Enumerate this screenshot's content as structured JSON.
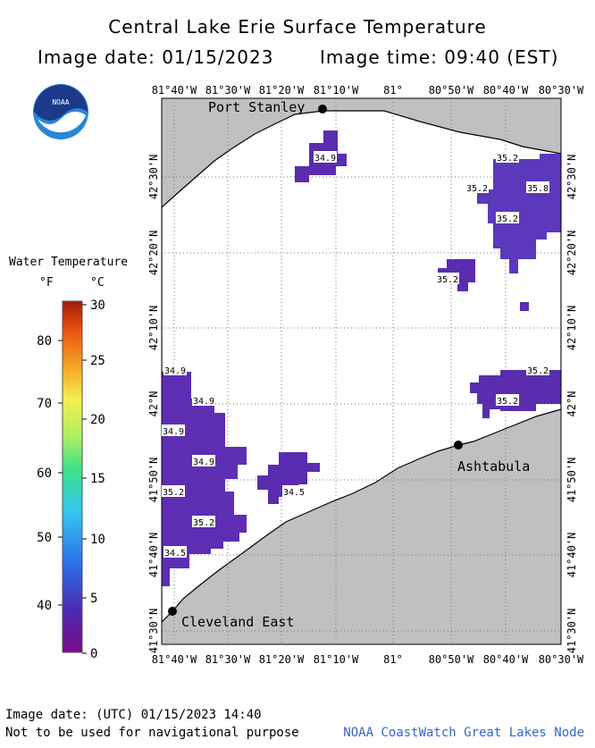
{
  "header": {
    "title": "Central Lake Erie Surface Temperature",
    "image_date": "Image date: 01/15/2023",
    "image_time": "Image time: 09:40 (EST)"
  },
  "logo": {
    "icon": "noaa-logo-icon",
    "text": "NOAA"
  },
  "legend": {
    "title": "Water Temperature",
    "unit_f": "°F",
    "unit_c": "°C",
    "f_ticks": [
      "80",
      "70",
      "60",
      "50",
      "40"
    ],
    "c_ticks": [
      "30",
      "25",
      "20",
      "15",
      "10",
      "5",
      "0"
    ]
  },
  "map": {
    "lon_labels": [
      "81°40'W",
      "81°30'W",
      "81°20'W",
      "81°10'W",
      "81°",
      "80°50'W",
      "80°40'W",
      "80°30'W"
    ],
    "lat_labels": [
      "42°30'N",
      "42°20'N",
      "42°10'N",
      "42°N",
      "41°50'N",
      "41°40'N",
      "41°30'N"
    ],
    "places": [
      {
        "name": "Port Stanley"
      },
      {
        "name": "Ashtabula"
      },
      {
        "name": "Cleveland East"
      }
    ],
    "temperature_labels": [
      "34.9",
      "35.2",
      "35.2",
      "35.8",
      "35.2",
      "35.2",
      "35.2",
      "35.2",
      "34.9",
      "34.9",
      "34.9",
      "34.9",
      "35.2",
      "35.2",
      "34.5",
      "34.5"
    ],
    "colors": {
      "land": "#c0c0c0",
      "water": "#ffffff",
      "warm_temp": "#5533bb",
      "cold_temp": "#6a2aa8"
    }
  },
  "footer": {
    "utc_date": "Image date: (UTC) 01/15/2023  14:40",
    "disclaimer": "Not to be used for navigational purpose",
    "credit": "NOAA CoastWatch Great Lakes Node"
  }
}
